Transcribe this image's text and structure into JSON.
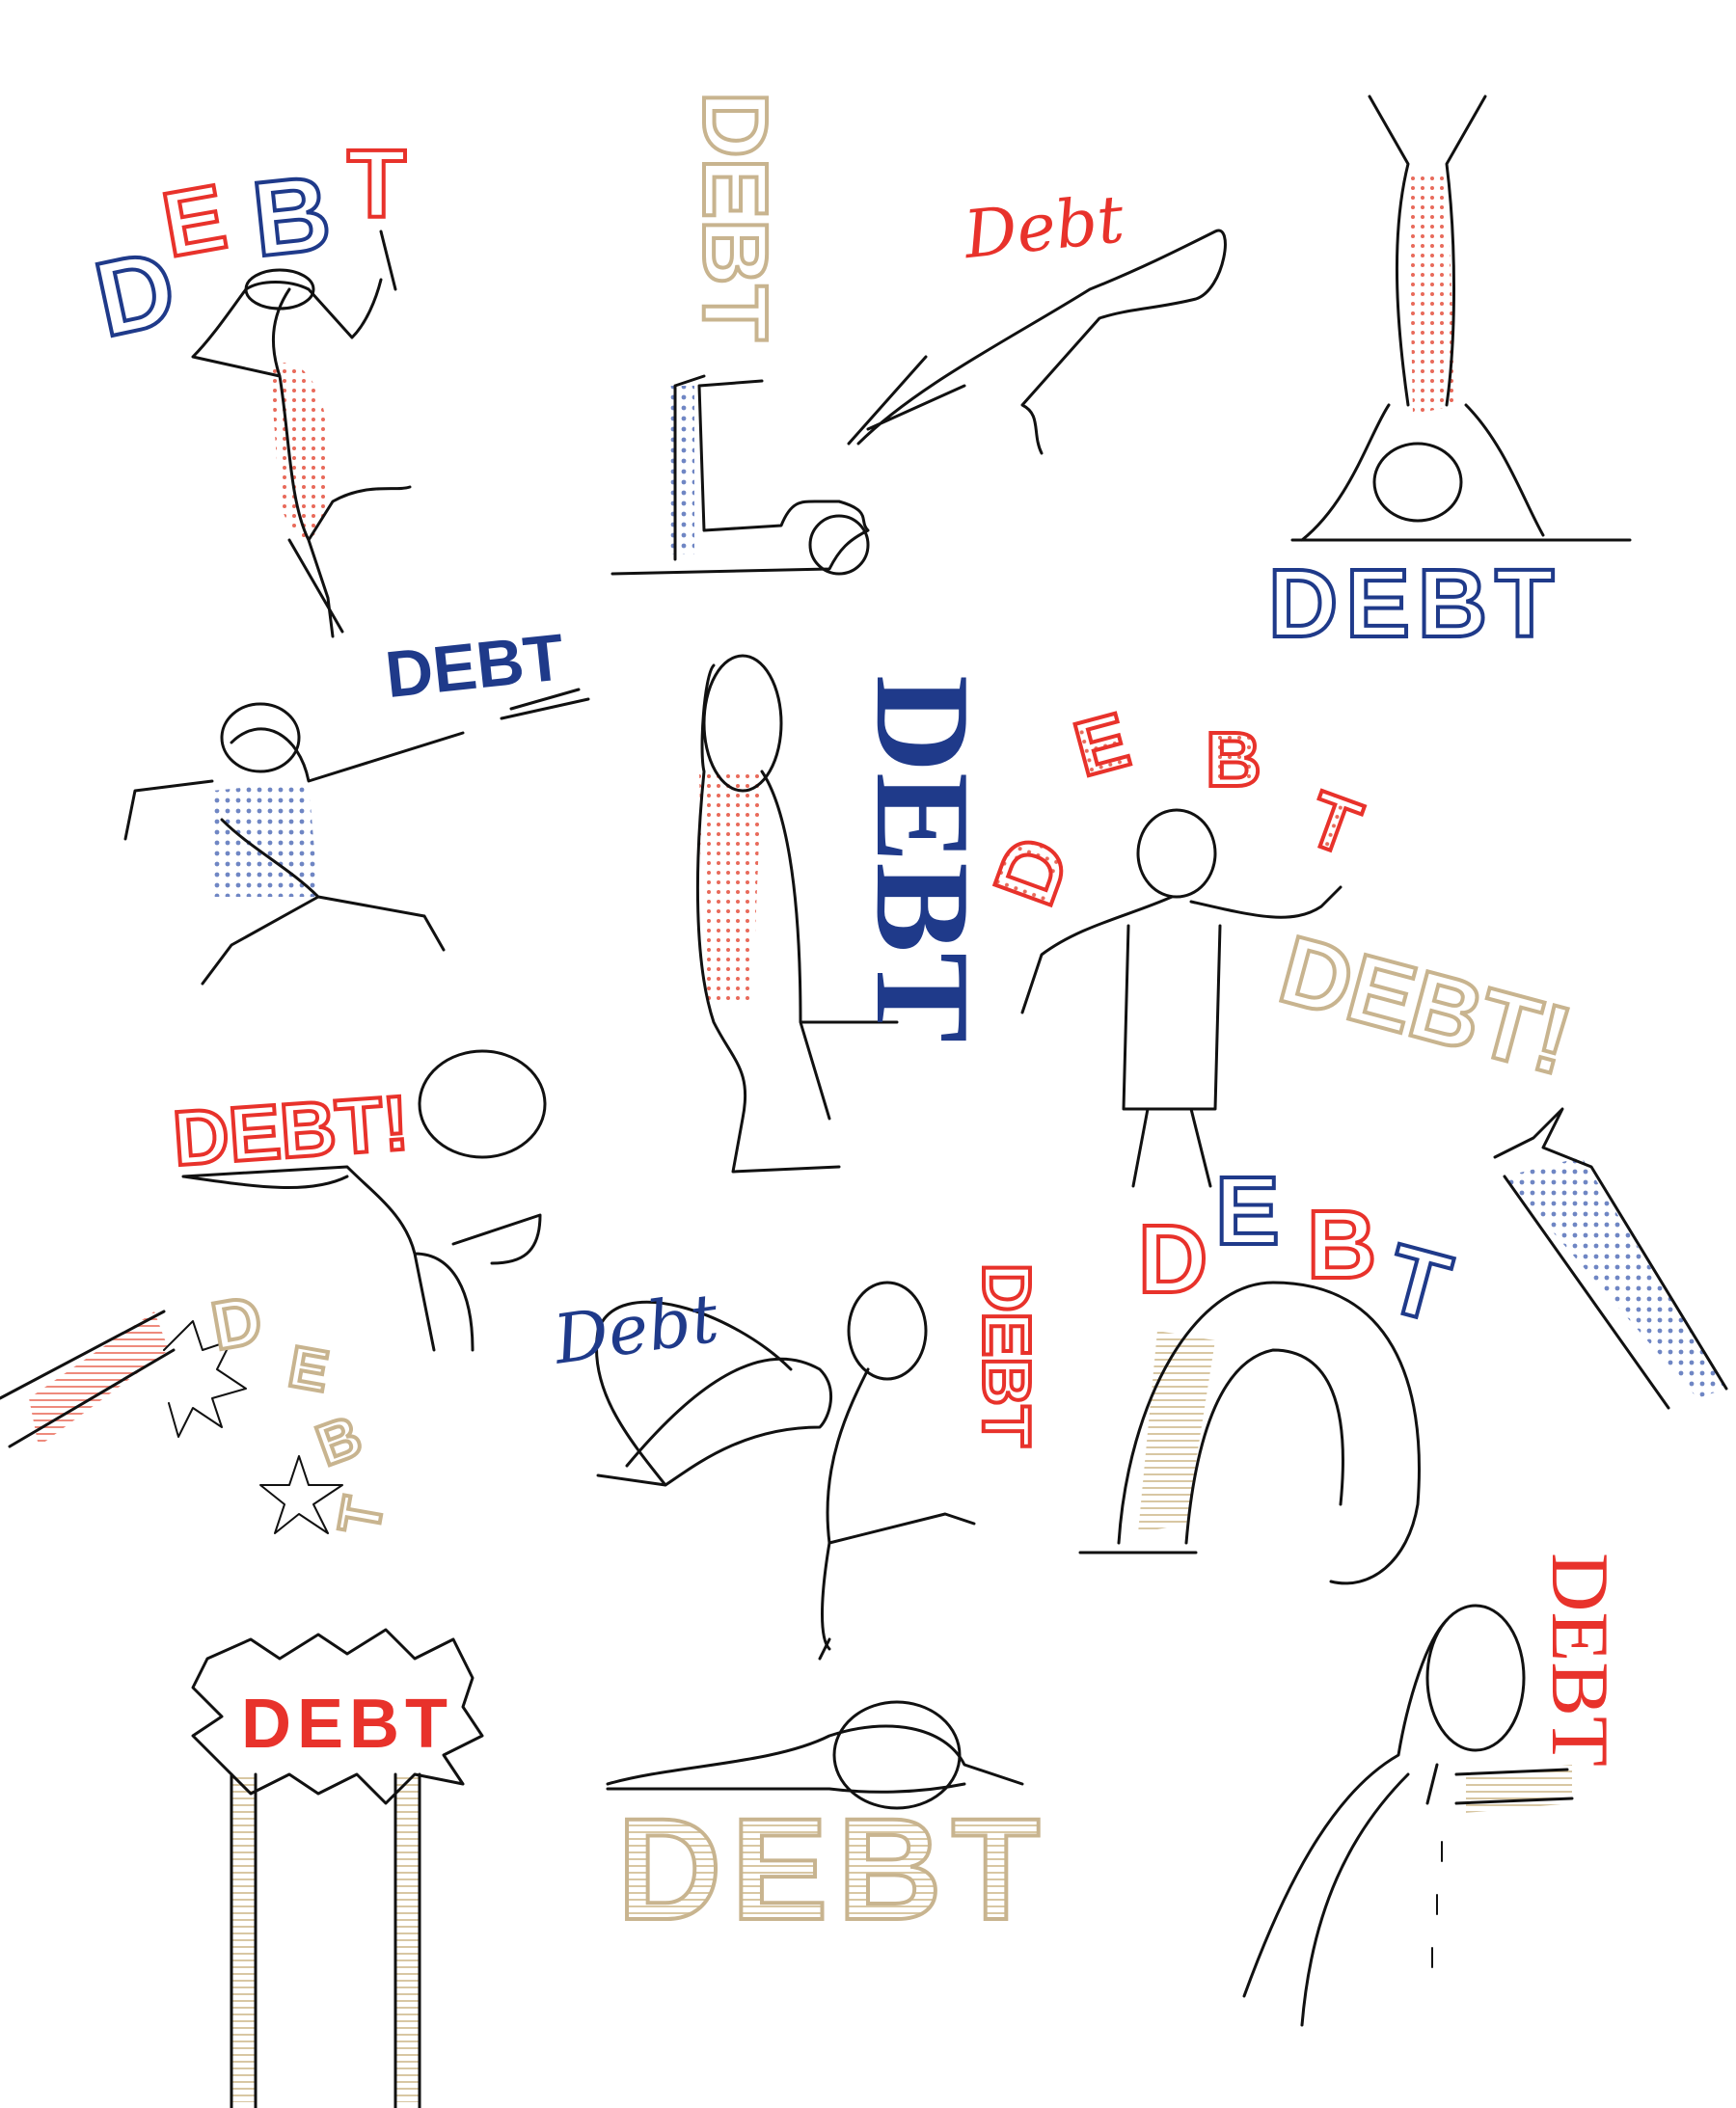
{
  "colors": {
    "red": "#e8322b",
    "blue": "#1f3a8a",
    "tan": "#c8b48f",
    "ink": "#111111",
    "dot_red": "#e86a5a",
    "dot_blue": "#6f86c4",
    "stripe_tan": "#d8c7a3",
    "background": "#ffffff"
  },
  "words": {
    "w1_d": "D",
    "w1_e": "E",
    "w1_b": "B",
    "w1_t": "T",
    "w2": "DEBT",
    "w3": "Debt",
    "w4": "DEBT",
    "w5": "DEBT",
    "w6": "DEBT",
    "w7_d": "D",
    "w7_e": "E",
    "w7_b": "B",
    "w7_t": "T",
    "w8": "DEBT!",
    "w9": "DEBT!",
    "w10_d": "D",
    "w10_e": "E",
    "w10_b": "B",
    "w10_t": "T",
    "w11": "Debt",
    "w12": "DEBT",
    "w13_d": "D",
    "w13_e": "E",
    "w13_b": "B",
    "w13_t": "T",
    "w14": "DEBT",
    "w15": "DEBT",
    "w16": "DEBT"
  },
  "icons": [
    "stick-figure",
    "hand-icon",
    "star-icon",
    "speech-burst-icon",
    "tear-drop-icon"
  ]
}
